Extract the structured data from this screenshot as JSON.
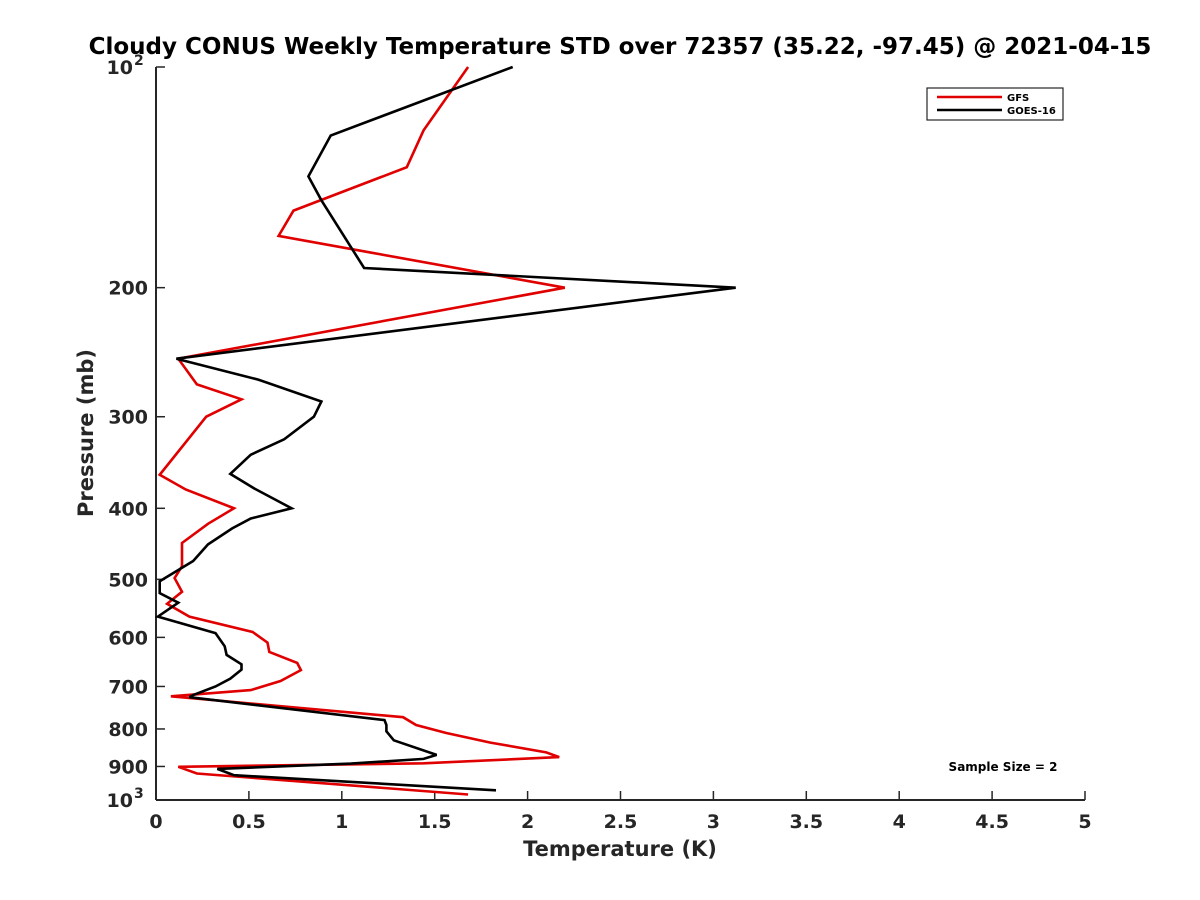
{
  "chart_data": {
    "type": "line",
    "title": "Cloudy CONUS Weekly Temperature STD over 72357 (35.22, -97.45) @ 2021-04-15",
    "xlabel": "Temperature (K)",
    "ylabel": "Pressure (mb)",
    "xlim": [
      0,
      5
    ],
    "ylim": [
      100,
      1000
    ],
    "y_scale": "log",
    "y_reversed": true,
    "grid": false,
    "legend_position": "top-right",
    "x_ticks": [
      {
        "value": 0,
        "label": "0"
      },
      {
        "value": 0.5,
        "label": "0.5"
      },
      {
        "value": 1,
        "label": "1"
      },
      {
        "value": 1.5,
        "label": "1.5"
      },
      {
        "value": 2,
        "label": "2"
      },
      {
        "value": 2.5,
        "label": "2.5"
      },
      {
        "value": 3,
        "label": "3"
      },
      {
        "value": 3.5,
        "label": "3.5"
      },
      {
        "value": 4,
        "label": "4"
      },
      {
        "value": 4.5,
        "label": "4.5"
      },
      {
        "value": 5,
        "label": "5"
      }
    ],
    "y_ticks": [
      {
        "value": 100,
        "label": "10",
        "sup": "2"
      },
      {
        "value": 200,
        "label": "200"
      },
      {
        "value": 300,
        "label": "300"
      },
      {
        "value": 400,
        "label": "400"
      },
      {
        "value": 500,
        "label": "500"
      },
      {
        "value": 600,
        "label": "600"
      },
      {
        "value": 700,
        "label": "700"
      },
      {
        "value": 800,
        "label": "800"
      },
      {
        "value": 900,
        "label": "900"
      },
      {
        "value": 1000,
        "label": "10",
        "sup": "3"
      }
    ],
    "series": [
      {
        "name": "GFS",
        "color": "#e00000",
        "points": [
          [
            1.68,
            100
          ],
          [
            1.44,
            122
          ],
          [
            1.35,
            137
          ],
          [
            0.74,
            157
          ],
          [
            0.66,
            170
          ],
          [
            2.2,
            200
          ],
          [
            0.12,
            250
          ],
          [
            0.22,
            271
          ],
          [
            0.46,
            284
          ],
          [
            0.27,
            300
          ],
          [
            0.02,
            360
          ],
          [
            0.16,
            377
          ],
          [
            0.42,
            400
          ],
          [
            0.28,
            420
          ],
          [
            0.14,
            446
          ],
          [
            0.14,
            480
          ],
          [
            0.1,
            498
          ],
          [
            0.14,
            520
          ],
          [
            0.06,
            540
          ],
          [
            0.18,
            562
          ],
          [
            0.52,
            590
          ],
          [
            0.6,
            610
          ],
          [
            0.61,
            628
          ],
          [
            0.76,
            650
          ],
          [
            0.78,
            665
          ],
          [
            0.67,
            688
          ],
          [
            0.51,
            708
          ],
          [
            0.08,
            722
          ],
          [
            1.33,
            771
          ],
          [
            1.4,
            790
          ],
          [
            1.56,
            810
          ],
          [
            1.8,
            835
          ],
          [
            2.1,
            861
          ],
          [
            2.17,
            874
          ],
          [
            1.44,
            891
          ],
          [
            0.12,
            901
          ],
          [
            0.22,
            920
          ],
          [
            1.68,
            983
          ]
        ]
      },
      {
        "name": "GOES-16",
        "color": "#000000",
        "points": [
          [
            1.92,
            100
          ],
          [
            0.94,
            124
          ],
          [
            0.82,
            141
          ],
          [
            0.89,
            152
          ],
          [
            1.12,
            188
          ],
          [
            3.12,
            200
          ],
          [
            0.11,
            250
          ],
          [
            0.55,
            267
          ],
          [
            0.89,
            286
          ],
          [
            0.85,
            300
          ],
          [
            0.69,
            322
          ],
          [
            0.51,
            338
          ],
          [
            0.4,
            359
          ],
          [
            0.53,
            376
          ],
          [
            0.73,
            400
          ],
          [
            0.51,
            413
          ],
          [
            0.41,
            426
          ],
          [
            0.28,
            448
          ],
          [
            0.2,
            472
          ],
          [
            0.02,
            503
          ],
          [
            0.02,
            522
          ],
          [
            0.12,
            538
          ],
          [
            0.01,
            562
          ],
          [
            0.32,
            592
          ],
          [
            0.37,
            617
          ],
          [
            0.38,
            634
          ],
          [
            0.46,
            653
          ],
          [
            0.46,
            664
          ],
          [
            0.4,
            683
          ],
          [
            0.32,
            700
          ],
          [
            0.2,
            719
          ],
          [
            0.18,
            724
          ],
          [
            1.23,
            778
          ],
          [
            1.24,
            790
          ],
          [
            1.24,
            806
          ],
          [
            1.28,
            829
          ],
          [
            1.51,
            868
          ],
          [
            1.44,
            879
          ],
          [
            1.05,
            892
          ],
          [
            0.33,
            907
          ],
          [
            0.42,
            925
          ],
          [
            1.83,
            970
          ]
        ]
      }
    ],
    "legend_entries": [
      "GFS",
      "GOES-16"
    ],
    "annotation": "Sample Size = 2"
  }
}
